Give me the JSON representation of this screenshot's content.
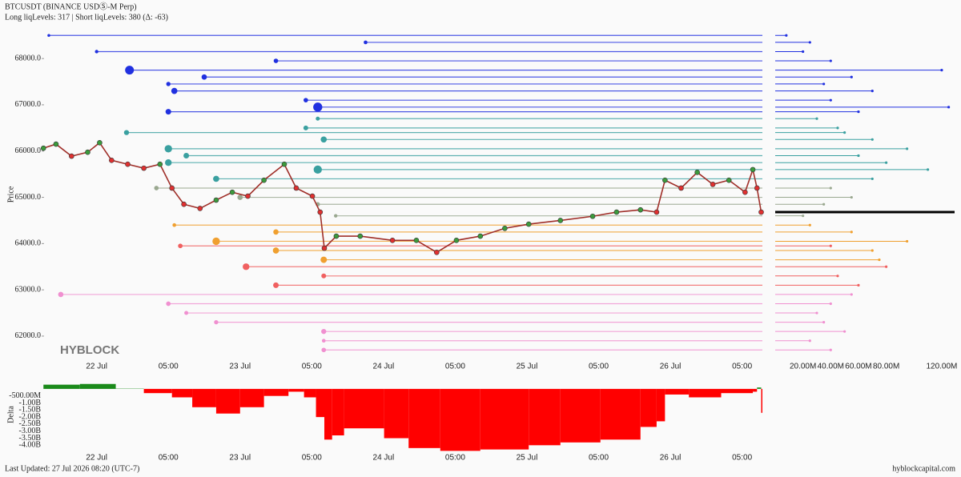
{
  "chart_data": [
    {
      "type": "line",
      "title": "BTCUSDT (BINANCE USDⓈ-M Perp)",
      "subtitle": "Long liqLevels: 317 | Short liqLevels: 380 (Δ: -63)",
      "y_label": "Price",
      "watermark": "HYBLOCK",
      "x": [
        -8.9,
        -6.8,
        -4.2,
        -1.5,
        0.5,
        2.5,
        5.2,
        7.9,
        10.6,
        12.6,
        14.6,
        17.3,
        20.0,
        22.7,
        25.3,
        28.0,
        31.4,
        33.4,
        36.1,
        37.4,
        38.1,
        40.1,
        44.1,
        49.5,
        53.5,
        56.9,
        60.2,
        64.2,
        68.3,
        72.3,
        77.6,
        83.0,
        87.0,
        91.0,
        93.7,
        95.1,
        97.8,
        100.5,
        103.1,
        105.8,
        108.5,
        109.8,
        110.5,
        111.2
      ],
      "series": [
        {
          "color": "#a0302a",
          "values": [
            66062,
            66150,
            65890,
            65975,
            66180,
            65800,
            65715,
            65630,
            65715,
            65200,
            64850,
            64760,
            64940,
            65110,
            65025,
            65370,
            65715,
            65200,
            65025,
            64680,
            63900,
            64160,
            64160,
            64070,
            64070,
            63810,
            64070,
            64160,
            64330,
            64420,
            64500,
            64590,
            64680,
            64730,
            64680,
            65370,
            65200,
            65540,
            65280,
            65370,
            65110,
            65600,
            65200,
            64680
          ]
        }
      ],
      "level_groups": [
        {
          "color": "#2030e0",
          "prices": [
            68500,
            68350,
            68150,
            67950,
            67750,
            67600,
            67450,
            67300,
            67100,
            66950,
            66850
          ],
          "starts": [
            -8,
            45,
            0,
            30,
            5.5,
            18,
            12,
            13,
            35,
            37,
            12
          ]
        },
        {
          "color": "#3aa0a0",
          "prices": [
            66700,
            66500,
            66400,
            66250,
            66050,
            65900,
            65750,
            65600,
            65400
          ],
          "starts": [
            37,
            35,
            5,
            38,
            12,
            15,
            12,
            37,
            20
          ]
        },
        {
          "color": "#9aa890",
          "prices": [
            65200,
            65000,
            64850,
            64600
          ],
          "starts": [
            10,
            24,
            37,
            40
          ]
        },
        {
          "color": "#f0a030",
          "prices": [
            64400,
            64250,
            64050,
            63850,
            63650
          ],
          "starts": [
            13,
            30,
            20,
            30,
            38
          ]
        },
        {
          "color": "#f06060",
          "prices": [
            63950,
            63500,
            63300,
            63100
          ],
          "starts": [
            14,
            25,
            38,
            30
          ]
        },
        {
          "color": "#f090d0",
          "prices": [
            62900,
            62700,
            62500,
            62300,
            62100,
            61900,
            61700
          ],
          "starts": [
            -6,
            12,
            15,
            20,
            38,
            38,
            38
          ]
        }
      ],
      "xlim": [
        -8.8,
        111.4
      ],
      "ylim": [
        61480,
        68660
      ],
      "xticks": [
        {
          "value": 0,
          "label": "22 Jul"
        },
        {
          "value": 12,
          "label": "05:00"
        },
        {
          "value": 24,
          "label": "23 Jul"
        },
        {
          "value": 36,
          "label": "05:00"
        },
        {
          "value": 48,
          "label": "24 Jul"
        },
        {
          "value": 60,
          "label": "05:00"
        },
        {
          "value": 72,
          "label": "25 Jul"
        },
        {
          "value": 84,
          "label": "05:00"
        },
        {
          "value": 96,
          "label": "26 Jul"
        },
        {
          "value": 108,
          "label": "05:00"
        }
      ],
      "yticks": [
        {
          "value": 62000,
          "label": "62000.0"
        },
        {
          "value": 63000,
          "label": "63000.0"
        },
        {
          "value": 64000,
          "label": "64000.0"
        },
        {
          "value": 65000,
          "label": "65000.0"
        },
        {
          "value": 66000,
          "label": "66000.0"
        },
        {
          "value": 67000,
          "label": "67000.0"
        },
        {
          "value": 68000,
          "label": "68000.0"
        }
      ]
    },
    {
      "type": "bar",
      "orientation": "horizontal",
      "series": [
        {
          "values": [
            8,
            25,
            20,
            40,
            120,
            55,
            35,
            70,
            40,
            125,
            60
          ]
        },
        {
          "values": [
            30,
            45,
            50,
            70,
            95,
            60,
            80,
            110,
            70
          ]
        },
        {
          "values": [
            40,
            55,
            35,
            20
          ]
        },
        {
          "values": [
            25,
            55,
            95,
            70,
            75
          ]
        },
        {
          "values": [
            40,
            80,
            45,
            60
          ]
        },
        {
          "values": [
            55,
            40,
            30,
            35,
            50,
            25,
            40
          ]
        }
      ],
      "xlim": [
        0,
        131
      ],
      "xticks": [
        {
          "value": 20,
          "label": "20.00M"
        },
        {
          "value": 40,
          "label": "40.00M"
        },
        {
          "value": 60,
          "label": "60.00M"
        },
        {
          "value": 80,
          "label": "80.00M"
        },
        {
          "value": 120,
          "label": "120.00M"
        }
      ]
    },
    {
      "type": "area",
      "y_label": "Delta",
      "positive_color": "#1a8a1a",
      "negative_color": "#ff0000",
      "x": [
        -8.9,
        -2.8,
        3.2,
        7.9,
        12.6,
        16.0,
        20.0,
        24.0,
        28.0,
        32.1,
        34.7,
        36.7,
        38.1,
        39.4,
        41.4,
        48.1,
        52.2,
        57.5,
        64.2,
        72.3,
        77.6,
        84.3,
        91.0,
        93.7,
        95.1,
        99.1,
        104.5,
        109.8,
        110.5,
        111.2
      ],
      "values": [
        0.3,
        0.35,
        0.02,
        -0.3,
        -0.6,
        -1.3,
        -1.75,
        -1.3,
        -0.5,
        -0.2,
        -0.6,
        -2.0,
        -3.6,
        -3.3,
        -2.8,
        -3.5,
        -4.2,
        -4.4,
        -4.3,
        -4.0,
        -3.8,
        -3.6,
        -2.7,
        -2.3,
        -0.4,
        -0.6,
        -0.3,
        -0.2,
        0.1,
        -1.7
      ],
      "ylim": [
        -4.55,
        0.62
      ],
      "yticks": [
        {
          "value": -0.5,
          "label": "-500.00M"
        },
        {
          "value": -1,
          "label": "-1.00B"
        },
        {
          "value": -1.5,
          "label": "-1.50B"
        },
        {
          "value": -2,
          "label": "-2.00B"
        },
        {
          "value": -2.5,
          "label": "-2.50B"
        },
        {
          "value": -3,
          "label": "-3.00B"
        },
        {
          "value": -3.5,
          "label": "-3.50B"
        },
        {
          "value": -4,
          "label": "-4.00B"
        }
      ]
    }
  ],
  "footer": {
    "updated": "Last Updated: 27 Jul 2026 08:20 (UTC-7)",
    "site": "hyblockcapital.com"
  }
}
